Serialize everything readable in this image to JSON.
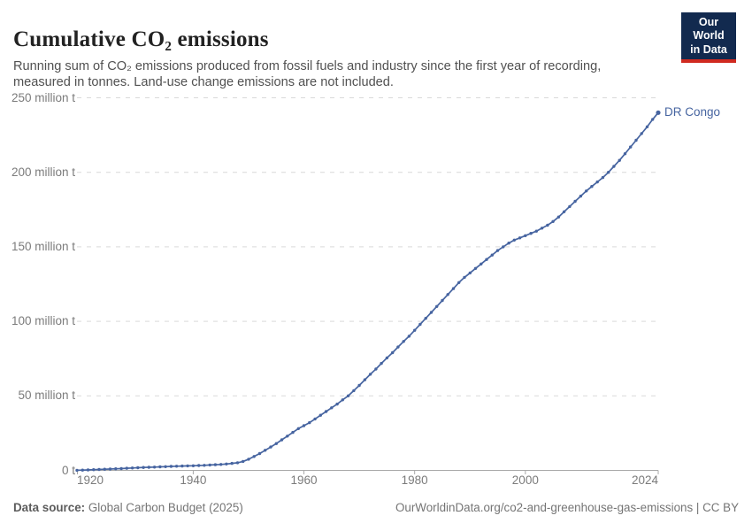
{
  "header": {
    "title": "Cumulative CO₂ emissions",
    "subtitle": "Running sum of CO₂ emissions produced from fossil fuels and industry since the first year of recording, measured in tonnes. Land-use change emissions are not included.",
    "logo": {
      "line1": "Our World",
      "line2": "in Data"
    }
  },
  "chart_data": {
    "type": "line",
    "title": "Cumulative CO₂ emissions",
    "entity": "DR Congo",
    "unit": "million tonnes",
    "color": "#4664a0",
    "grid": "horizontal dashed",
    "legend_position": "end-of-line label",
    "ylim": [
      0,
      250
    ],
    "y_ticks": [
      {
        "value": 0,
        "label": "0 t"
      },
      {
        "value": 50,
        "label": "50 million t"
      },
      {
        "value": 100,
        "label": "100 million t"
      },
      {
        "value": 150,
        "label": "150 million t"
      },
      {
        "value": 200,
        "label": "200 million t"
      },
      {
        "value": 250,
        "label": "250 million t"
      }
    ],
    "x_ticks": [
      {
        "value": 1920,
        "label": "1920"
      },
      {
        "value": 1940,
        "label": "1940"
      },
      {
        "value": 1960,
        "label": "1960"
      },
      {
        "value": 1980,
        "label": "1980"
      },
      {
        "value": 2000,
        "label": "2000"
      },
      {
        "value": 2024,
        "label": "2024"
      }
    ],
    "x": [
      1919,
      1920,
      1921,
      1922,
      1923,
      1924,
      1925,
      1926,
      1927,
      1928,
      1929,
      1930,
      1931,
      1932,
      1933,
      1934,
      1935,
      1936,
      1937,
      1938,
      1939,
      1940,
      1941,
      1942,
      1943,
      1944,
      1945,
      1946,
      1947,
      1948,
      1949,
      1950,
      1951,
      1952,
      1953,
      1954,
      1955,
      1956,
      1957,
      1958,
      1959,
      1960,
      1961,
      1962,
      1963,
      1964,
      1965,
      1966,
      1967,
      1968,
      1969,
      1970,
      1971,
      1972,
      1973,
      1974,
      1975,
      1976,
      1977,
      1978,
      1979,
      1980,
      1981,
      1982,
      1983,
      1984,
      1985,
      1986,
      1987,
      1988,
      1989,
      1990,
      1991,
      1992,
      1993,
      1994,
      1995,
      1996,
      1997,
      1998,
      1999,
      2000,
      2001,
      2002,
      2003,
      2004,
      2005,
      2006,
      2007,
      2008,
      2009,
      2010,
      2011,
      2012,
      2013,
      2014,
      2015,
      2016,
      2017,
      2018,
      2019,
      2020,
      2021,
      2022,
      2023,
      2024
    ],
    "values": [
      0.05,
      0.15,
      0.3,
      0.45,
      0.6,
      0.75,
      0.9,
      1.05,
      1.2,
      1.4,
      1.6,
      1.8,
      1.95,
      2.1,
      2.2,
      2.35,
      2.5,
      2.65,
      2.8,
      2.9,
      3.0,
      3.1,
      3.25,
      3.4,
      3.6,
      3.8,
      4.0,
      4.3,
      4.7,
      5.1,
      6.0,
      7.5,
      9.3,
      11.3,
      13.5,
      15.7,
      18.0,
      20.5,
      23.0,
      25.5,
      28.0,
      30.0,
      32.0,
      34.5,
      37.0,
      39.5,
      42.0,
      44.5,
      47.3,
      50.0,
      53.5,
      57.0,
      60.8,
      64.5,
      68.0,
      71.8,
      75.5,
      79.0,
      82.8,
      86.5,
      90.0,
      94.0,
      98.0,
      102.0,
      106.0,
      110.0,
      114.0,
      118.0,
      122.0,
      126.0,
      129.5,
      132.5,
      135.5,
      138.5,
      141.5,
      144.5,
      147.5,
      150.0,
      152.5,
      154.5,
      156.0,
      157.5,
      159.0,
      160.5,
      162.5,
      164.5,
      167.0,
      170.0,
      173.5,
      177.0,
      180.5,
      184.0,
      187.5,
      190.5,
      193.5,
      196.5,
      200.0,
      204.0,
      208.0,
      212.5,
      217.0,
      221.5,
      226.0,
      230.5,
      235.5,
      240.0
    ]
  },
  "footer": {
    "source_label": "Data source:",
    "source_value": " Global Carbon Budget (2025)",
    "url": "OurWorldinData.org/co2-and-greenhouse-gas-emissions | CC BY"
  },
  "colors": {
    "line": "#4664a0",
    "gridline": "#d9d9d9",
    "axis": "#a8a8a8",
    "tick_text": "#7b7b7b",
    "logo_bg": "#122a4f",
    "logo_red": "#d02a20"
  }
}
